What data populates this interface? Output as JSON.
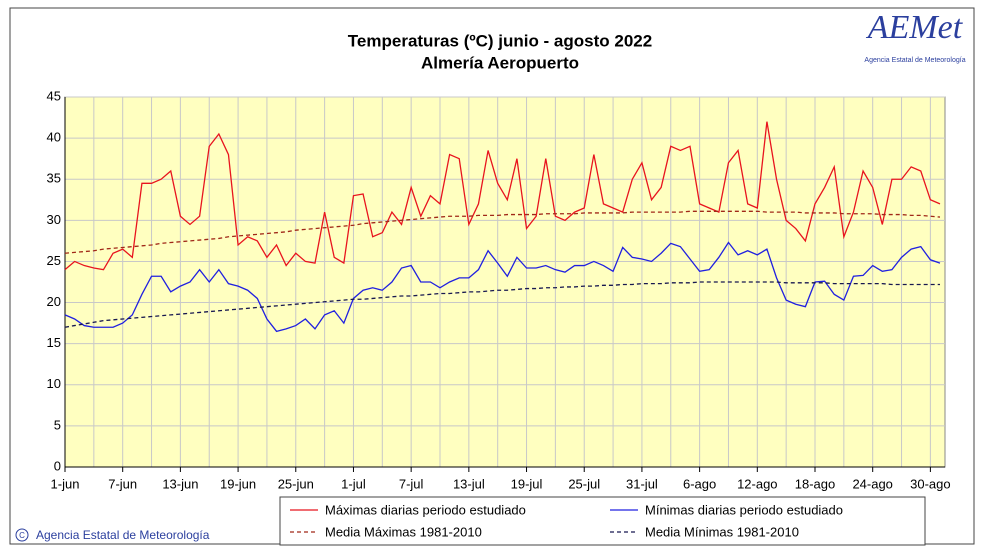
{
  "chart_data": {
    "type": "line",
    "title": "Temperaturas (ºC) junio - agosto 2022",
    "subtitle": "Almería Aeropuerto",
    "logo": "AEMet",
    "logo_subtitle": "Agencia Estatal de Meteorología",
    "copyright": "Agencia Estatal de Meteorología",
    "categories": [
      "1-jun",
      null,
      null,
      null,
      null,
      null,
      "7-jun",
      null,
      null,
      null,
      null,
      null,
      "13-jun",
      null,
      null,
      null,
      null,
      null,
      "19-jun",
      null,
      null,
      null,
      null,
      null,
      "25-jun",
      null,
      null,
      null,
      null,
      null,
      "1-jul",
      null,
      null,
      null,
      null,
      null,
      "7-jul",
      null,
      null,
      null,
      null,
      null,
      "13-jul",
      null,
      null,
      null,
      null,
      null,
      "19-jul",
      null,
      null,
      null,
      null,
      null,
      "25-jul",
      null,
      null,
      null,
      null,
      null,
      "31-jul",
      null,
      null,
      null,
      null,
      null,
      "6-ago",
      null,
      null,
      null,
      null,
      null,
      "12-ago",
      null,
      null,
      null,
      null,
      null,
      "18-ago",
      null,
      null,
      null,
      null,
      null,
      "24-ago",
      null,
      null,
      null,
      null,
      null,
      "30-ago",
      null
    ],
    "ylim": [
      0,
      45
    ],
    "yticks": [
      0,
      5,
      10,
      15,
      20,
      25,
      30,
      35,
      40,
      45
    ],
    "grid": true,
    "series": [
      {
        "name": "Máximas diarias periodo estudiado",
        "color": "#e8141e",
        "dash": false,
        "values": [
          24,
          25,
          24.5,
          24.2,
          24,
          26,
          26.5,
          25.5,
          34.5,
          34.5,
          35,
          36,
          30.5,
          29.5,
          30.5,
          39,
          40.5,
          38,
          27,
          28,
          27.5,
          25.5,
          27,
          24.5,
          26,
          25,
          24.8,
          31,
          25.5,
          24.8,
          33,
          33.2,
          28,
          28.5,
          31,
          29.5,
          34,
          30.5,
          33,
          32,
          38,
          37.5,
          29.5,
          32,
          38.5,
          34.5,
          32.5,
          37.5,
          29,
          30.5,
          37.5,
          30.5,
          30,
          31,
          31.5,
          38,
          32,
          31.5,
          31,
          35,
          37,
          32.5,
          34,
          39,
          38.5,
          39,
          32,
          31.5,
          31,
          37,
          38.5,
          32,
          31.5,
          42,
          35,
          30,
          29,
          27.5,
          32,
          34,
          36.5,
          28,
          31,
          36,
          34,
          29.5,
          35,
          35,
          36.5,
          36,
          32.5,
          32
        ]
      },
      {
        "name": "Mínimas diarias periodo estudiado",
        "color": "#2020e0",
        "dash": false,
        "values": [
          18.5,
          18,
          17.2,
          17,
          17,
          17,
          17.5,
          18.5,
          21,
          23.2,
          23.2,
          21.3,
          22,
          22.5,
          24,
          22.5,
          24,
          22.3,
          22,
          21.5,
          20.5,
          18,
          16.5,
          16.8,
          17.2,
          18,
          16.8,
          18.5,
          19,
          17.5,
          20.5,
          21.5,
          21.8,
          21.5,
          22.5,
          24.2,
          24.5,
          22.5,
          22.5,
          21.8,
          22.5,
          23,
          23,
          24,
          26.3,
          24.8,
          23.2,
          25.5,
          24.2,
          24.2,
          24.5,
          24,
          23.7,
          24.5,
          24.5,
          25,
          24.5,
          23.8,
          26.7,
          25.5,
          25.3,
          25,
          26,
          27.2,
          26.8,
          25.3,
          23.8,
          24,
          25.5,
          27.3,
          25.8,
          26.3,
          25.8,
          26.5,
          23,
          20.3,
          19.8,
          19.5,
          22.5,
          22.6,
          21,
          20.3,
          23.2,
          23.3,
          24.5,
          23.8,
          24,
          25.5,
          26.5,
          26.8,
          25.2,
          24.8
        ]
      },
      {
        "name": "Media Máximas 1981-2010",
        "color": "#a02818",
        "dash": true,
        "values": [
          26.0,
          26.1,
          26.2,
          26.3,
          26.5,
          26.6,
          26.7,
          26.8,
          26.9,
          27.0,
          27.2,
          27.3,
          27.4,
          27.5,
          27.6,
          27.7,
          27.8,
          28.0,
          28.1,
          28.2,
          28.3,
          28.4,
          28.5,
          28.6,
          28.8,
          28.9,
          29.0,
          29.1,
          29.2,
          29.3,
          29.4,
          29.6,
          29.7,
          29.8,
          29.9,
          30.0,
          30.1,
          30.2,
          30.3,
          30.4,
          30.5,
          30.5,
          30.5,
          30.6,
          30.6,
          30.6,
          30.7,
          30.7,
          30.7,
          30.7,
          30.8,
          30.8,
          30.8,
          30.8,
          30.9,
          30.9,
          30.9,
          30.9,
          30.9,
          31.0,
          31.0,
          31.0,
          31.0,
          31.0,
          31.0,
          31.1,
          31.1,
          31.1,
          31.1,
          31.1,
          31.1,
          31.1,
          31.1,
          31.0,
          31.0,
          31.0,
          31.0,
          30.9,
          30.9,
          30.9,
          30.9,
          30.8,
          30.8,
          30.8,
          30.8,
          30.7,
          30.7,
          30.7,
          30.6,
          30.6,
          30.5,
          30.4
        ]
      },
      {
        "name": "Media Mínimas 1981-2010",
        "color": "#181850",
        "dash": true,
        "values": [
          17.0,
          17.2,
          17.4,
          17.6,
          17.8,
          17.9,
          18.0,
          18.1,
          18.2,
          18.3,
          18.4,
          18.5,
          18.6,
          18.7,
          18.8,
          18.9,
          19.0,
          19.1,
          19.2,
          19.3,
          19.4,
          19.5,
          19.6,
          19.7,
          19.8,
          19.9,
          20.0,
          20.1,
          20.2,
          20.3,
          20.4,
          20.4,
          20.5,
          20.6,
          20.7,
          20.8,
          20.8,
          20.9,
          21.0,
          21.1,
          21.1,
          21.2,
          21.3,
          21.3,
          21.4,
          21.5,
          21.5,
          21.6,
          21.7,
          21.7,
          21.8,
          21.8,
          21.9,
          21.9,
          22.0,
          22.0,
          22.1,
          22.1,
          22.2,
          22.2,
          22.3,
          22.3,
          22.3,
          22.4,
          22.4,
          22.4,
          22.5,
          22.5,
          22.5,
          22.5,
          22.5,
          22.5,
          22.5,
          22.5,
          22.5,
          22.4,
          22.4,
          22.4,
          22.4,
          22.4,
          22.3,
          22.3,
          22.3,
          22.3,
          22.3,
          22.3,
          22.2,
          22.2,
          22.2,
          22.2,
          22.2,
          22.2
        ]
      }
    ]
  }
}
